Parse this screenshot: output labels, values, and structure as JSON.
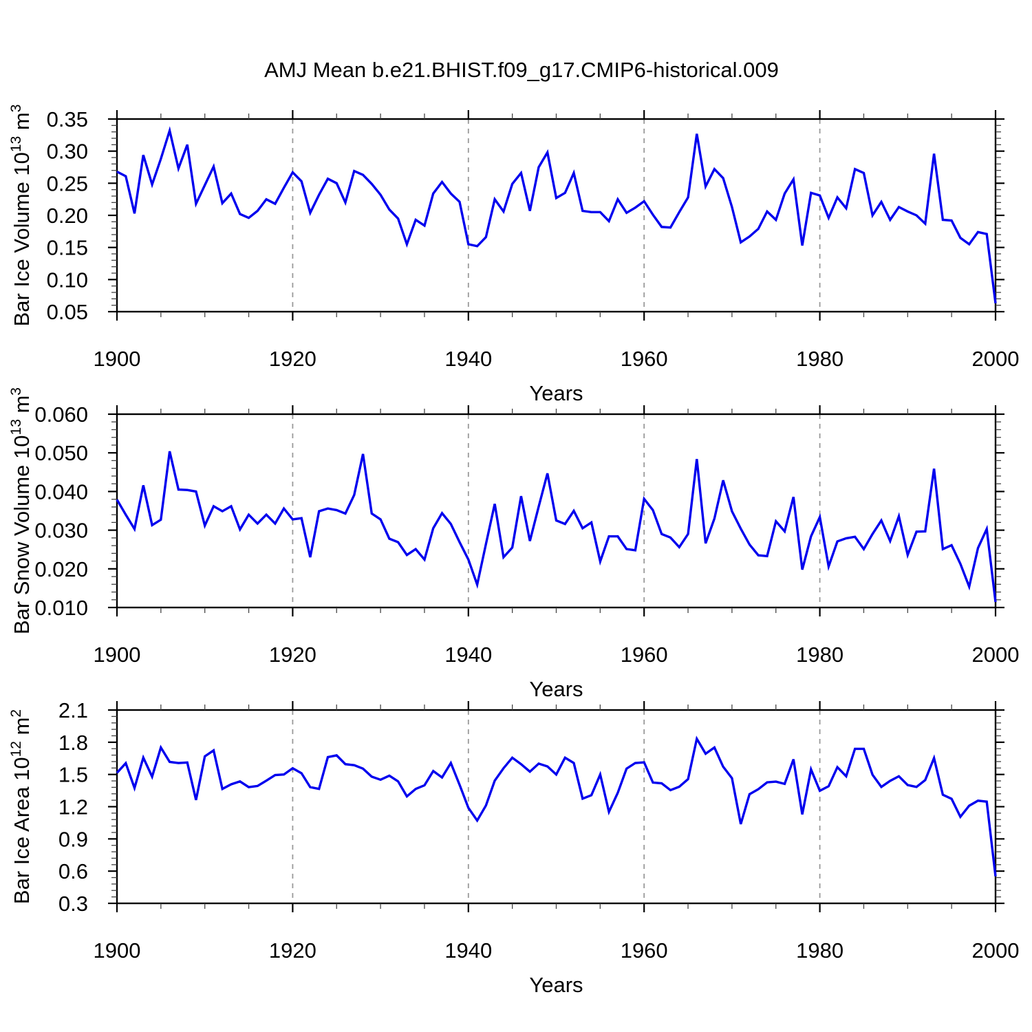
{
  "title": "AMJ Mean b.e21.BHIST.f09_g17.CMIP6-historical.009",
  "styles": {
    "line_color": "#0000ee",
    "grid_color": "#999999",
    "axis_color": "#000000",
    "minor_tick_color": "#444444",
    "background": "#ffffff"
  },
  "chart_data": [
    {
      "type": "line",
      "ylabel": "Bar Ice Volume 10¹³ m³",
      "ylabel_parts": [
        {
          "t": "Bar Ice Volume 10"
        },
        {
          "t": "13",
          "sup": true
        },
        {
          "t": " m"
        },
        {
          "t": "3",
          "sup": true
        }
      ],
      "xlabel": "Years",
      "x_start": 1900,
      "x_end": 2000,
      "x_step": 1,
      "ylim": [
        0.05,
        0.35
      ],
      "ytick_step": 0.05,
      "ytick_decimals": 2,
      "yminor_divisions": 5,
      "x_major_ticks": [
        1900,
        1920,
        1940,
        1960,
        1980,
        2000
      ],
      "x_minor_step": 5,
      "x_gridlines": [
        1920,
        1940,
        1960,
        1980
      ],
      "grid": "vertical-dashed",
      "legend": "none",
      "values": [
        0.268,
        0.261,
        0.203,
        0.294,
        0.248,
        0.288,
        0.332,
        0.273,
        0.31,
        0.218,
        0.247,
        0.276,
        0.219,
        0.234,
        0.202,
        0.196,
        0.207,
        0.225,
        0.218,
        0.243,
        0.267,
        0.253,
        0.204,
        0.232,
        0.257,
        0.25,
        0.22,
        0.269,
        0.263,
        0.249,
        0.232,
        0.209,
        0.195,
        0.155,
        0.193,
        0.184,
        0.234,
        0.252,
        0.234,
        0.221,
        0.155,
        0.152,
        0.166,
        0.225,
        0.206,
        0.249,
        0.266,
        0.207,
        0.275,
        0.298,
        0.227,
        0.235,
        0.266,
        0.207,
        0.205,
        0.205,
        0.191,
        0.225,
        0.204,
        0.212,
        0.222,
        0.201,
        0.182,
        0.181,
        0.205,
        0.228,
        0.327,
        0.245,
        0.272,
        0.258,
        0.213,
        0.158,
        0.167,
        0.179,
        0.206,
        0.193,
        0.234,
        0.256,
        0.153,
        0.235,
        0.231,
        0.196,
        0.228,
        0.211,
        0.272,
        0.266,
        0.2,
        0.221,
        0.193,
        0.213,
        0.206,
        0.2,
        0.187,
        0.296,
        0.193,
        0.192,
        0.165,
        0.155,
        0.174,
        0.171,
        0.063
      ]
    },
    {
      "type": "line",
      "ylabel": "Bar Snow Volume 10¹³ m³",
      "ylabel_parts": [
        {
          "t": "Bar Snow Volume 10"
        },
        {
          "t": "13",
          "sup": true
        },
        {
          "t": " m"
        },
        {
          "t": "3",
          "sup": true
        }
      ],
      "xlabel": "Years",
      "x_start": 1900,
      "x_end": 2000,
      "x_step": 1,
      "ylim": [
        0.01,
        0.06
      ],
      "ytick_step": 0.01,
      "ytick_decimals": 3,
      "yminor_divisions": 5,
      "x_major_ticks": [
        1900,
        1920,
        1940,
        1960,
        1980,
        2000
      ],
      "x_minor_step": 5,
      "x_gridlines": [
        1920,
        1940,
        1960,
        1980
      ],
      "grid": "vertical-dashed",
      "legend": "none",
      "values": [
        0.0379,
        0.034,
        0.0303,
        0.0416,
        0.0313,
        0.0327,
        0.0504,
        0.0405,
        0.0404,
        0.04,
        0.0312,
        0.0362,
        0.0349,
        0.0362,
        0.0302,
        0.034,
        0.0317,
        0.034,
        0.0317,
        0.0356,
        0.0328,
        0.0331,
        0.023,
        0.0349,
        0.0356,
        0.0352,
        0.0343,
        0.0391,
        0.0497,
        0.0343,
        0.0328,
        0.0278,
        0.0269,
        0.0236,
        0.0251,
        0.0224,
        0.0305,
        0.0344,
        0.0316,
        0.0269,
        0.0224,
        0.0159,
        0.0264,
        0.0368,
        0.023,
        0.0255,
        0.0388,
        0.0272,
        0.0361,
        0.0447,
        0.0325,
        0.0316,
        0.035,
        0.0305,
        0.032,
        0.0219,
        0.0284,
        0.0284,
        0.0251,
        0.0248,
        0.0381,
        0.0352,
        0.029,
        0.0281,
        0.0256,
        0.029,
        0.0484,
        0.0266,
        0.033,
        0.0429,
        0.0349,
        0.0304,
        0.0263,
        0.0235,
        0.0233,
        0.0323,
        0.0297,
        0.0386,
        0.0198,
        0.0284,
        0.0334,
        0.0206,
        0.0271,
        0.0279,
        0.0283,
        0.0251,
        0.029,
        0.0325,
        0.0272,
        0.0336,
        0.0236,
        0.0296,
        0.0297,
        0.0459,
        0.0251,
        0.0261,
        0.0213,
        0.0154,
        0.0254,
        0.0303,
        0.0114
      ]
    },
    {
      "type": "line",
      "ylabel": "Bar Ice Area 10¹² m²",
      "ylabel_parts": [
        {
          "t": "Bar Ice Area 10"
        },
        {
          "t": "12",
          "sup": true
        },
        {
          "t": " m"
        },
        {
          "t": "2",
          "sup": true
        }
      ],
      "xlabel": "Years",
      "x_start": 1900,
      "x_end": 2000,
      "x_step": 1,
      "ylim": [
        0.3,
        2.1
      ],
      "ytick_step": 0.3,
      "ytick_decimals": 1,
      "yminor_divisions": 5,
      "x_major_ticks": [
        1900,
        1920,
        1940,
        1960,
        1980,
        2000
      ],
      "x_minor_step": 5,
      "x_gridlines": [
        1920,
        1940,
        1960,
        1980
      ],
      "grid": "vertical-dashed",
      "legend": "none",
      "values": [
        1.515,
        1.605,
        1.374,
        1.657,
        1.479,
        1.751,
        1.617,
        1.606,
        1.611,
        1.262,
        1.668,
        1.724,
        1.365,
        1.408,
        1.435,
        1.382,
        1.393,
        1.442,
        1.494,
        1.5,
        1.558,
        1.511,
        1.382,
        1.365,
        1.661,
        1.678,
        1.596,
        1.586,
        1.554,
        1.479,
        1.451,
        1.489,
        1.436,
        1.296,
        1.365,
        1.399,
        1.532,
        1.472,
        1.607,
        1.404,
        1.189,
        1.071,
        1.211,
        1.442,
        1.558,
        1.656,
        1.596,
        1.526,
        1.601,
        1.575,
        1.5,
        1.656,
        1.607,
        1.275,
        1.307,
        1.5,
        1.151,
        1.329,
        1.554,
        1.607,
        1.613,
        1.425,
        1.418,
        1.354,
        1.386,
        1.457,
        1.832,
        1.693,
        1.751,
        1.572,
        1.465,
        1.038,
        1.316,
        1.363,
        1.427,
        1.433,
        1.412,
        1.641,
        1.128,
        1.547,
        1.348,
        1.39,
        1.568,
        1.483,
        1.739,
        1.739,
        1.497,
        1.384,
        1.44,
        1.483,
        1.401,
        1.384,
        1.448,
        1.653,
        1.311,
        1.273,
        1.106,
        1.209,
        1.256,
        1.247,
        0.551
      ]
    }
  ]
}
